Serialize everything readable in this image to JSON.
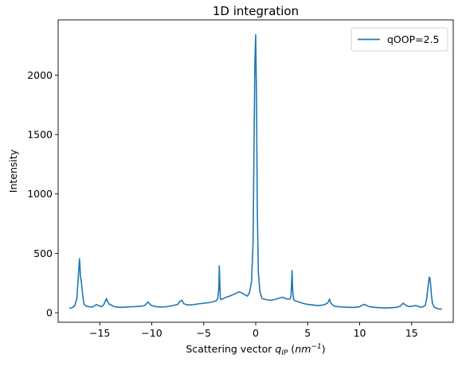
{
  "chart_data": {
    "type": "line",
    "title": "1D integration",
    "xlabel_main": "Scattering vector ",
    "xlabel_var": "q",
    "xlabel_sub": "IP",
    "xlabel_unit_open": " (",
    "xlabel_unit_base": "nm",
    "xlabel_unit_exp": "−1",
    "xlabel_unit_close": ")",
    "ylabel": "Intensity",
    "xlim": [
      -19.0,
      19.0
    ],
    "ylim": [
      -80,
      2465
    ],
    "xticks": [
      -15,
      -10,
      -5,
      0,
      5,
      10,
      15
    ],
    "xtick_labels": [
      "−15",
      "−10",
      "−5",
      "0",
      "5",
      "10",
      "15"
    ],
    "yticks": [
      0,
      500,
      1000,
      1500,
      2000
    ],
    "ytick_labels": [
      "0",
      "500",
      "1000",
      "1500",
      "2000"
    ],
    "grid": false,
    "legend_position": "top-right",
    "series": [
      {
        "name": "qOOP=2.5",
        "color": "#1f77b4",
        "x": [
          -17.9,
          -17.6,
          -17.4,
          -17.2,
          -17.1,
          -17.0,
          -16.95,
          -16.9,
          -16.85,
          -16.8,
          -16.7,
          -16.6,
          -16.5,
          -16.3,
          -16.0,
          -15.7,
          -15.5,
          -15.3,
          -15.0,
          -14.8,
          -14.6,
          -14.45,
          -14.35,
          -14.3,
          -14.2,
          -14.05,
          -13.9,
          -13.7,
          -13.5,
          -13.0,
          -12.5,
          -12.0,
          -11.5,
          -11.0,
          -10.7,
          -10.5,
          -10.4,
          -10.3,
          -10.1,
          -9.8,
          -9.5,
          -9.0,
          -8.5,
          -8.0,
          -7.5,
          -7.3,
          -7.1,
          -7.0,
          -6.9,
          -6.7,
          -6.5,
          -6.0,
          -5.5,
          -5.0,
          -4.5,
          -4.0,
          -3.8,
          -3.65,
          -3.55,
          -3.5,
          -3.45,
          -3.4,
          -3.35,
          -3.25,
          -3.1,
          -3.0,
          -2.5,
          -2.0,
          -1.6,
          -1.3,
          -1.0,
          -0.8,
          -0.6,
          -0.4,
          -0.25,
          -0.15,
          -0.08,
          0.0,
          0.08,
          0.15,
          0.25,
          0.4,
          0.6,
          1.0,
          1.5,
          2.0,
          2.3,
          2.6,
          3.0,
          3.3,
          3.4,
          3.45,
          3.5,
          3.55,
          3.65,
          3.8,
          4.0,
          4.5,
          5.0,
          5.5,
          6.0,
          6.5,
          6.9,
          7.0,
          7.1,
          7.2,
          7.4,
          7.6,
          8.0,
          8.5,
          9.0,
          9.5,
          10.0,
          10.2,
          10.4,
          10.6,
          10.8,
          11.0,
          11.5,
          12.0,
          12.5,
          13.0,
          13.5,
          13.9,
          14.05,
          14.2,
          14.4,
          14.6,
          14.8,
          15.1,
          15.3,
          15.5,
          15.7,
          16.0,
          16.3,
          16.45,
          16.55,
          16.65,
          16.7,
          16.75,
          16.8,
          16.9,
          17.0,
          17.1,
          17.2,
          17.4,
          17.6,
          17.9
        ],
        "y": [
          38,
          45,
          60,
          120,
          250,
          380,
          455,
          390,
          290,
          285,
          200,
          120,
          70,
          55,
          50,
          48,
          60,
          68,
          55,
          52,
          70,
          100,
          120,
          105,
          85,
          70,
          65,
          55,
          50,
          45,
          48,
          50,
          52,
          55,
          60,
          75,
          90,
          85,
          65,
          55,
          50,
          48,
          52,
          60,
          70,
          95,
          105,
          90,
          75,
          70,
          65,
          68,
          75,
          80,
          85,
          95,
          100,
          120,
          200,
          395,
          250,
          120,
          110,
          115,
          120,
          125,
          140,
          160,
          175,
          165,
          150,
          140,
          170,
          260,
          600,
          1500,
          2100,
          2340,
          1800,
          900,
          350,
          180,
          120,
          110,
          105,
          115,
          125,
          130,
          115,
          115,
          140,
          250,
          355,
          200,
          110,
          100,
          95,
          80,
          70,
          65,
          60,
          65,
          80,
          95,
          115,
          85,
          65,
          55,
          50,
          48,
          45,
          45,
          50,
          60,
          70,
          65,
          55,
          50,
          45,
          42,
          40,
          42,
          45,
          55,
          70,
          80,
          65,
          55,
          52,
          55,
          60,
          58,
          50,
          48,
          60,
          120,
          200,
          270,
          300,
          290,
          260,
          150,
          80,
          60,
          45,
          38,
          32,
          30
        ]
      }
    ]
  }
}
